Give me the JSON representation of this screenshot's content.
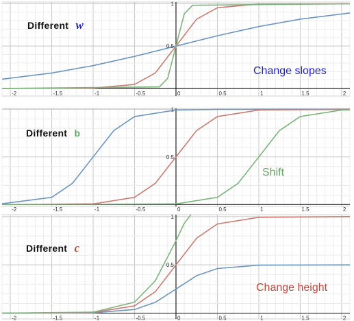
{
  "chart_data": [
    {
      "type": "line",
      "title": "",
      "xlabel": "",
      "ylabel": "",
      "xlim": [
        -2.1,
        2.1
      ],
      "ylim": [
        -0.09,
        1.02
      ],
      "x_ticks": [
        "-2",
        "-1.5",
        "-1",
        "-0.5",
        "0",
        "0.5",
        "1",
        "1.5",
        "2"
      ],
      "y_ticks": [
        {
          "value": 0.5,
          "label": "0.5"
        },
        {
          "value": 1,
          "label": "1"
        }
      ],
      "grid": true,
      "label": {
        "prefix": "Different",
        "param": "w",
        "param_color": "#2323c8"
      },
      "annotation": {
        "text": "Change slopes",
        "color": "#2323c8"
      },
      "series": [
        {
          "color": "#6b95c3",
          "values": [
            {
              "x": -2.1,
              "y": 0.109
            },
            {
              "x": -1.5,
              "y": 0.182
            },
            {
              "x": -1,
              "y": 0.269
            },
            {
              "x": -0.5,
              "y": 0.378
            },
            {
              "x": 0,
              "y": 0.5
            },
            {
              "x": 0.5,
              "y": 0.622
            },
            {
              "x": 1,
              "y": 0.731
            },
            {
              "x": 1.5,
              "y": 0.818
            },
            {
              "x": 2.1,
              "y": 0.891
            }
          ]
        },
        {
          "color": "#cc7b72",
          "values": [
            {
              "x": -2.1,
              "y": 0.0
            },
            {
              "x": -1,
              "y": 0.003
            },
            {
              "x": -0.5,
              "y": 0.047
            },
            {
              "x": -0.25,
              "y": 0.182
            },
            {
              "x": 0,
              "y": 0.5
            },
            {
              "x": 0.25,
              "y": 0.818
            },
            {
              "x": 0.5,
              "y": 0.953
            },
            {
              "x": 1,
              "y": 0.997
            },
            {
              "x": 2.1,
              "y": 1.0
            }
          ]
        },
        {
          "color": "#7bb47b",
          "values": [
            {
              "x": -2.1,
              "y": 0.0
            },
            {
              "x": -0.2,
              "y": 0.018
            },
            {
              "x": -0.1,
              "y": 0.119
            },
            {
              "x": 0,
              "y": 0.5
            },
            {
              "x": 0.1,
              "y": 0.881
            },
            {
              "x": 0.2,
              "y": 0.982
            },
            {
              "x": 2.1,
              "y": 1.0
            }
          ]
        }
      ]
    },
    {
      "type": "line",
      "title": "",
      "xlabel": "",
      "ylabel": "",
      "xlim": [
        -2.1,
        2.1
      ],
      "ylim": [
        -0.02,
        1.01
      ],
      "x_ticks": [
        "-2",
        "-1.5",
        "-1",
        "-0.5",
        "0",
        "0.5",
        "1",
        "1.5",
        "2"
      ],
      "y_ticks": [
        {
          "value": 0.5,
          "label": "0.5"
        },
        {
          "value": 1,
          "label": "1"
        }
      ],
      "grid": true,
      "label": {
        "prefix": "Different",
        "param": "b",
        "param_color": "#6aa56a"
      },
      "annotation": {
        "text": "Shift",
        "color": "#6aa56a"
      },
      "series": [
        {
          "color": "#6b95c3",
          "values": [
            {
              "x": -2.1,
              "y": 0.008
            },
            {
              "x": -1.5,
              "y": 0.076
            },
            {
              "x": -1.25,
              "y": 0.223
            },
            {
              "x": -1,
              "y": 0.5
            },
            {
              "x": -0.75,
              "y": 0.777
            },
            {
              "x": -0.5,
              "y": 0.924
            },
            {
              "x": 0,
              "y": 0.993
            },
            {
              "x": 0.5,
              "y": 0.999
            },
            {
              "x": 2.1,
              "y": 1.0
            }
          ]
        },
        {
          "color": "#cc7b72",
          "values": [
            {
              "x": -2.1,
              "y": 0.0
            },
            {
              "x": -1,
              "y": 0.007
            },
            {
              "x": -0.5,
              "y": 0.076
            },
            {
              "x": -0.25,
              "y": 0.223
            },
            {
              "x": 0,
              "y": 0.5
            },
            {
              "x": 0.25,
              "y": 0.777
            },
            {
              "x": 0.5,
              "y": 0.924
            },
            {
              "x": 1,
              "y": 0.993
            },
            {
              "x": 2.1,
              "y": 1.0
            }
          ]
        },
        {
          "color": "#7bb47b",
          "values": [
            {
              "x": -2.1,
              "y": 0.0
            },
            {
              "x": 0,
              "y": 0.007
            },
            {
              "x": 0.5,
              "y": 0.076
            },
            {
              "x": 0.75,
              "y": 0.223
            },
            {
              "x": 1,
              "y": 0.5
            },
            {
              "x": 1.25,
              "y": 0.777
            },
            {
              "x": 1.5,
              "y": 0.924
            },
            {
              "x": 2,
              "y": 0.993
            },
            {
              "x": 2.1,
              "y": 0.995
            }
          ]
        }
      ]
    },
    {
      "type": "line",
      "title": "",
      "xlabel": "",
      "ylabel": "",
      "xlim": [
        -2.1,
        2.1
      ],
      "ylim": [
        -0.06,
        1.02
      ],
      "x_ticks": [
        "-2",
        "-1.5",
        "-1",
        "-0.5",
        "0",
        "0.5",
        "1",
        "1.5",
        "2"
      ],
      "y_ticks": [
        {
          "value": 0.5,
          "label": "0.5"
        },
        {
          "value": 1,
          "label": "1"
        }
      ],
      "grid": true,
      "label": {
        "prefix": "Different",
        "param": "c",
        "param_color": "#c8463c"
      },
      "annotation": {
        "text": "Change height",
        "color": "#c8463c"
      },
      "series": [
        {
          "color": "#6b95c3",
          "values": [
            {
              "x": -2.1,
              "y": 0.0
            },
            {
              "x": -1,
              "y": 0.003
            },
            {
              "x": -0.5,
              "y": 0.038
            },
            {
              "x": -0.25,
              "y": 0.112
            },
            {
              "x": 0,
              "y": 0.25
            },
            {
              "x": 0.25,
              "y": 0.388
            },
            {
              "x": 0.5,
              "y": 0.462
            },
            {
              "x": 1,
              "y": 0.497
            },
            {
              "x": 2.1,
              "y": 0.5
            }
          ]
        },
        {
          "color": "#cc7b72",
          "values": [
            {
              "x": -2.1,
              "y": 0.0
            },
            {
              "x": -1,
              "y": 0.007
            },
            {
              "x": -0.5,
              "y": 0.076
            },
            {
              "x": -0.25,
              "y": 0.223
            },
            {
              "x": 0,
              "y": 0.5
            },
            {
              "x": 0.25,
              "y": 0.777
            },
            {
              "x": 0.5,
              "y": 0.924
            },
            {
              "x": 1,
              "y": 0.993
            },
            {
              "x": 2.1,
              "y": 1.0
            }
          ]
        },
        {
          "color": "#7bb47b",
          "values": [
            {
              "x": -2.1,
              "y": 0.0
            },
            {
              "x": -1,
              "y": 0.01
            },
            {
              "x": -0.5,
              "y": 0.114
            },
            {
              "x": -0.25,
              "y": 0.335
            },
            {
              "x": 0,
              "y": 0.75
            },
            {
              "x": 0.1,
              "y": 0.93
            },
            {
              "x": 0.18,
              "y": 1.02
            }
          ]
        }
      ]
    }
  ]
}
